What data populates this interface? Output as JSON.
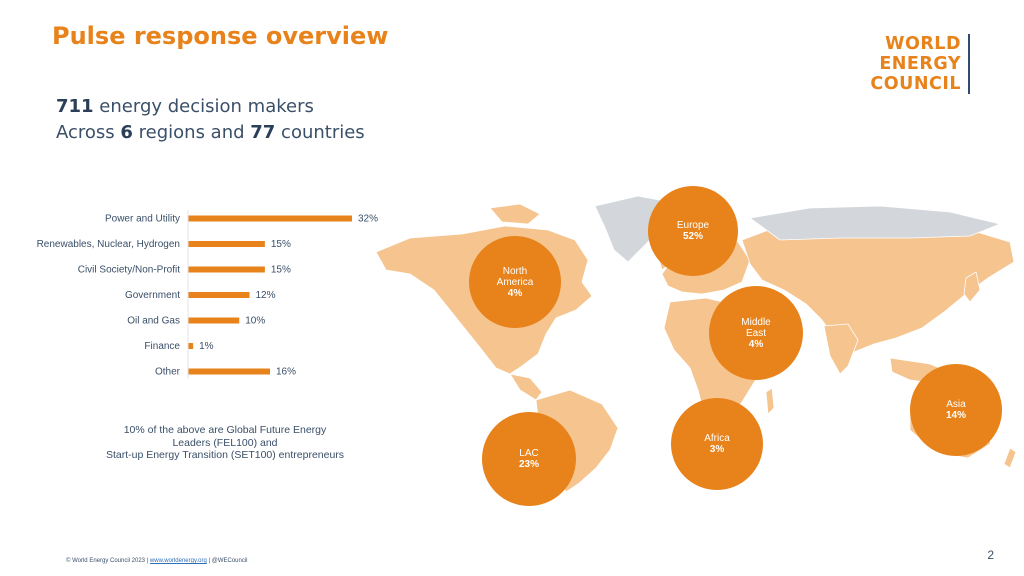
{
  "title": "Pulse response overview",
  "logo": {
    "line1": "WORLD",
    "line2": "ENERGY",
    "line3": "COUNCIL"
  },
  "stats": {
    "decision_makers": "711",
    "line1_suffix": " energy decision makers",
    "line2_prefix": "Across ",
    "regions": "6",
    "line2_mid": " regions and ",
    "countries": "77",
    "line2_suffix": " countries"
  },
  "chart_data": {
    "type": "bar",
    "orientation": "horizontal",
    "categories": [
      "Power and Utility",
      "Renewables, Nuclear, Hydrogen",
      "Civil Society/Non-Profit",
      "Government",
      "Oil and Gas",
      "Finance",
      "Other"
    ],
    "values": [
      32,
      15,
      15,
      12,
      10,
      1,
      16
    ],
    "value_labels": [
      "32%",
      "15%",
      "15%",
      "12%",
      "10%",
      "1%",
      "16%"
    ],
    "xlim": [
      0,
      32
    ],
    "grid": false,
    "bar_color": "#e8821a"
  },
  "regions": [
    {
      "name": "North America",
      "name_l1": "North",
      "name_l2": "America",
      "pct": "4%"
    },
    {
      "name": "Europe",
      "name_l1": "Europe",
      "name_l2": "",
      "pct": "52%"
    },
    {
      "name": "Middle East",
      "name_l1": "Middle",
      "name_l2": "East",
      "pct": "4%"
    },
    {
      "name": "Asia",
      "name_l1": "Asia",
      "name_l2": "",
      "pct": "14%"
    },
    {
      "name": "Africa",
      "name_l1": "Africa",
      "name_l2": "",
      "pct": "3%"
    },
    {
      "name": "LAC",
      "name_l1": "LAC",
      "name_l2": "",
      "pct": "23%"
    }
  ],
  "note": {
    "line1": "10% of the above are Global Future Energy",
    "line2": "Leaders (FEL100) and",
    "line3": "Start-up Energy Transition (SET100) entrepreneurs"
  },
  "footer": {
    "prefix": "© World Energy Council 2023  |  ",
    "link": "www.worldenergy.org",
    "suffix": "  |  @WECouncil"
  },
  "page_number": "2",
  "colors": {
    "accent": "#e8821a",
    "land": "#f5c48f",
    "land_grey": "#d3d7db",
    "text": "#3a4f68"
  }
}
